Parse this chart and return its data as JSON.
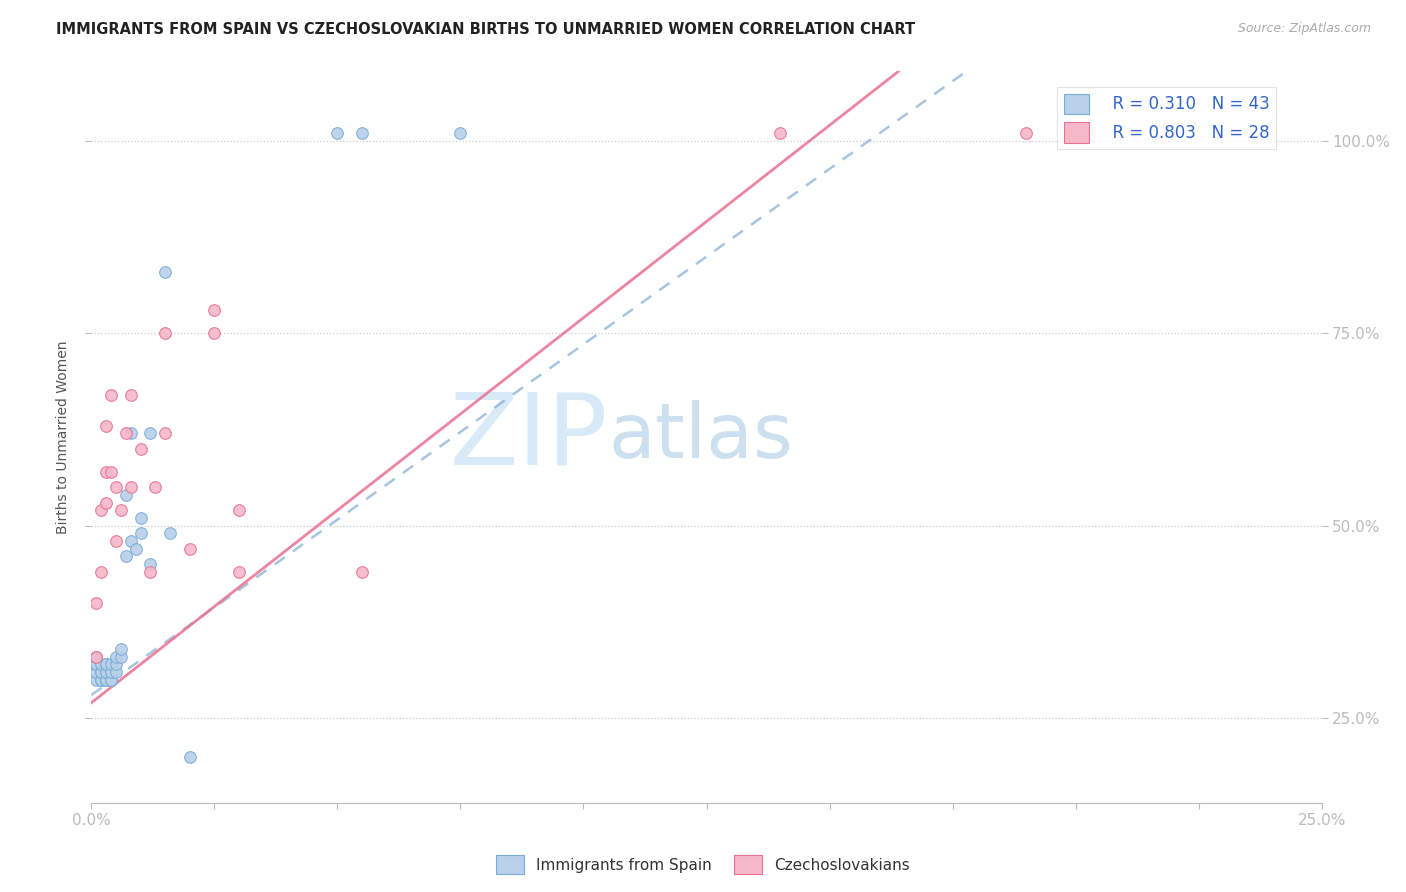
{
  "title": "IMMIGRANTS FROM SPAIN VS CZECHOSLOVAKIAN BIRTHS TO UNMARRIED WOMEN CORRELATION CHART",
  "source": "Source: ZipAtlas.com",
  "ylabel_label": "Births to Unmarried Women",
  "legend_bottom_left": "Immigrants from Spain",
  "legend_bottom_right": "Czechoslovakians",
  "legend_r1": "R = 0.310",
  "legend_n1": "N = 43",
  "legend_r2": "R = 0.803",
  "legend_n2": "N = 28",
  "blue_scatter_x": [
    0.001,
    0.001,
    0.001,
    0.001,
    0.001,
    0.001,
    0.002,
    0.002,
    0.002,
    0.002,
    0.002,
    0.003,
    0.003,
    0.003,
    0.003,
    0.003,
    0.003,
    0.003,
    0.004,
    0.004,
    0.004,
    0.004,
    0.004,
    0.005,
    0.005,
    0.005,
    0.006,
    0.006,
    0.007,
    0.007,
    0.008,
    0.008,
    0.009,
    0.01,
    0.01,
    0.012,
    0.012,
    0.015,
    0.016,
    0.02,
    0.05,
    0.055,
    0.075
  ],
  "blue_scatter_y": [
    0.3,
    0.31,
    0.32,
    0.32,
    0.32,
    0.33,
    0.3,
    0.3,
    0.31,
    0.31,
    0.32,
    0.3,
    0.3,
    0.3,
    0.31,
    0.31,
    0.32,
    0.32,
    0.3,
    0.3,
    0.31,
    0.31,
    0.32,
    0.31,
    0.32,
    0.33,
    0.33,
    0.34,
    0.46,
    0.54,
    0.48,
    0.62,
    0.47,
    0.49,
    0.51,
    0.45,
    0.62,
    0.83,
    0.49,
    0.2,
    1.01,
    1.01,
    1.01
  ],
  "pink_scatter_x": [
    0.001,
    0.001,
    0.002,
    0.002,
    0.003,
    0.003,
    0.003,
    0.004,
    0.004,
    0.005,
    0.005,
    0.006,
    0.007,
    0.008,
    0.008,
    0.01,
    0.012,
    0.013,
    0.015,
    0.015,
    0.02,
    0.025,
    0.025,
    0.03,
    0.03,
    0.055,
    0.14,
    0.19
  ],
  "pink_scatter_y": [
    0.33,
    0.4,
    0.44,
    0.52,
    0.53,
    0.57,
    0.63,
    0.67,
    0.57,
    0.48,
    0.55,
    0.52,
    0.62,
    0.67,
    0.55,
    0.6,
    0.44,
    0.55,
    0.75,
    0.62,
    0.47,
    0.78,
    0.75,
    0.44,
    0.52,
    0.44,
    1.01,
    1.01
  ],
  "blue_color": "#b8d0e8",
  "blue_edge_color": "#7aacda",
  "pink_color": "#f5b8c8",
  "pink_edge_color": "#e87090",
  "blue_trend_color": "#8ab0d8",
  "pink_trend_color": "#e87090",
  "watermark_zip_color": "#c8dff0",
  "watermark_atlas_color": "#b0cce8",
  "background_color": "#ffffff",
  "xmin": 0.0,
  "xmax": 0.25,
  "ymin": 0.14,
  "ymax": 1.09,
  "y_ticks": [
    0.25,
    0.5,
    0.75,
    1.0
  ],
  "y_tick_labels": [
    "25.0%",
    "50.0%",
    "75.0%",
    "100.0%"
  ],
  "x_tick_labels_show": [
    "0.0%",
    "25.0%"
  ],
  "blue_trend_x0": 0.0,
  "blue_trend_y0": 0.28,
  "blue_trend_x1": 0.09,
  "blue_trend_y1": 0.69,
  "pink_trend_x0": 0.0,
  "pink_trend_y0": 0.27,
  "pink_trend_x1": 0.09,
  "pink_trend_y1": 0.72
}
